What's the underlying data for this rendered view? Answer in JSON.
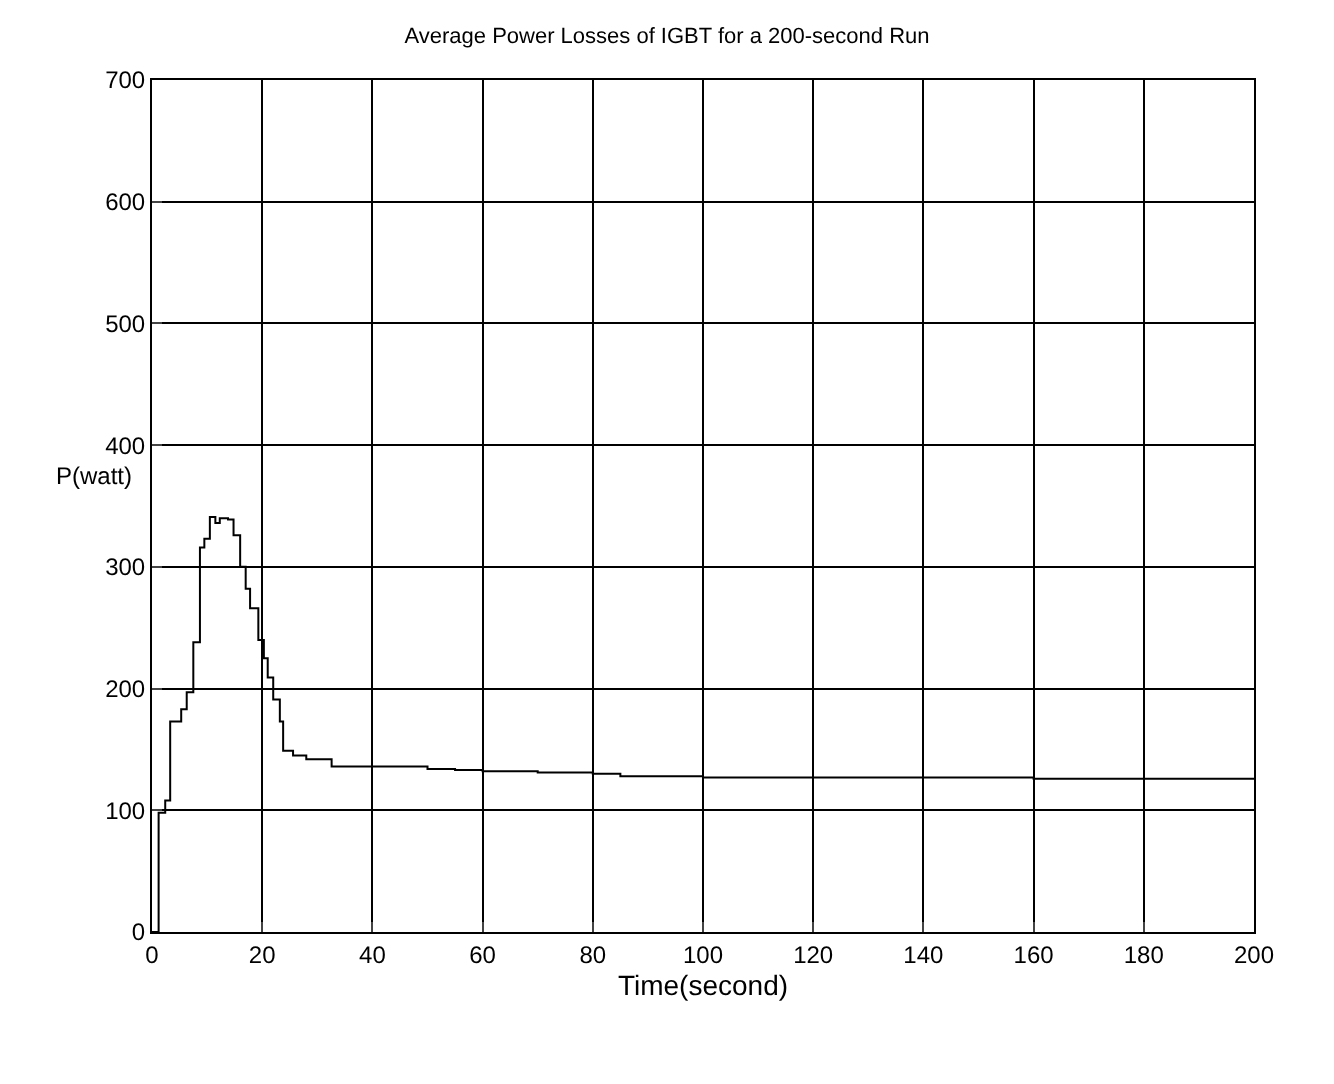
{
  "chart_data": {
    "type": "step",
    "title": "Average Power Losses of IGBT for a 200-second Run",
    "xlabel": "Time(second)",
    "ylabel": "P(watt)",
    "x": [
      0,
      1.2,
      2.4,
      3.3,
      5.3,
      6.3,
      7.5,
      8.7,
      9.5,
      10.5,
      11.5,
      12.3,
      13.8,
      14.8,
      16,
      17,
      17.8,
      19.3,
      20.3,
      21,
      22,
      23.2,
      23.8,
      25.6,
      28,
      32.6,
      50,
      55,
      60,
      70,
      80,
      85,
      100,
      120,
      140,
      160,
      180,
      200
    ],
    "values": [
      0,
      98,
      108,
      173,
      183,
      197,
      238,
      316,
      323,
      341,
      336,
      340,
      339,
      326,
      300,
      282,
      266,
      240,
      225,
      209,
      191,
      173,
      149,
      145,
      142,
      136,
      134,
      133,
      132,
      131,
      130,
      128,
      127,
      127,
      127,
      126,
      126,
      126
    ],
    "color": "#000000",
    "xlim": [
      0,
      200
    ],
    "ylim": [
      0,
      700
    ],
    "xticks": [
      0,
      20,
      40,
      60,
      80,
      100,
      120,
      140,
      160,
      180,
      200
    ],
    "yticks": [
      0,
      100,
      200,
      300,
      400,
      500,
      600,
      700
    ],
    "grid": true
  }
}
